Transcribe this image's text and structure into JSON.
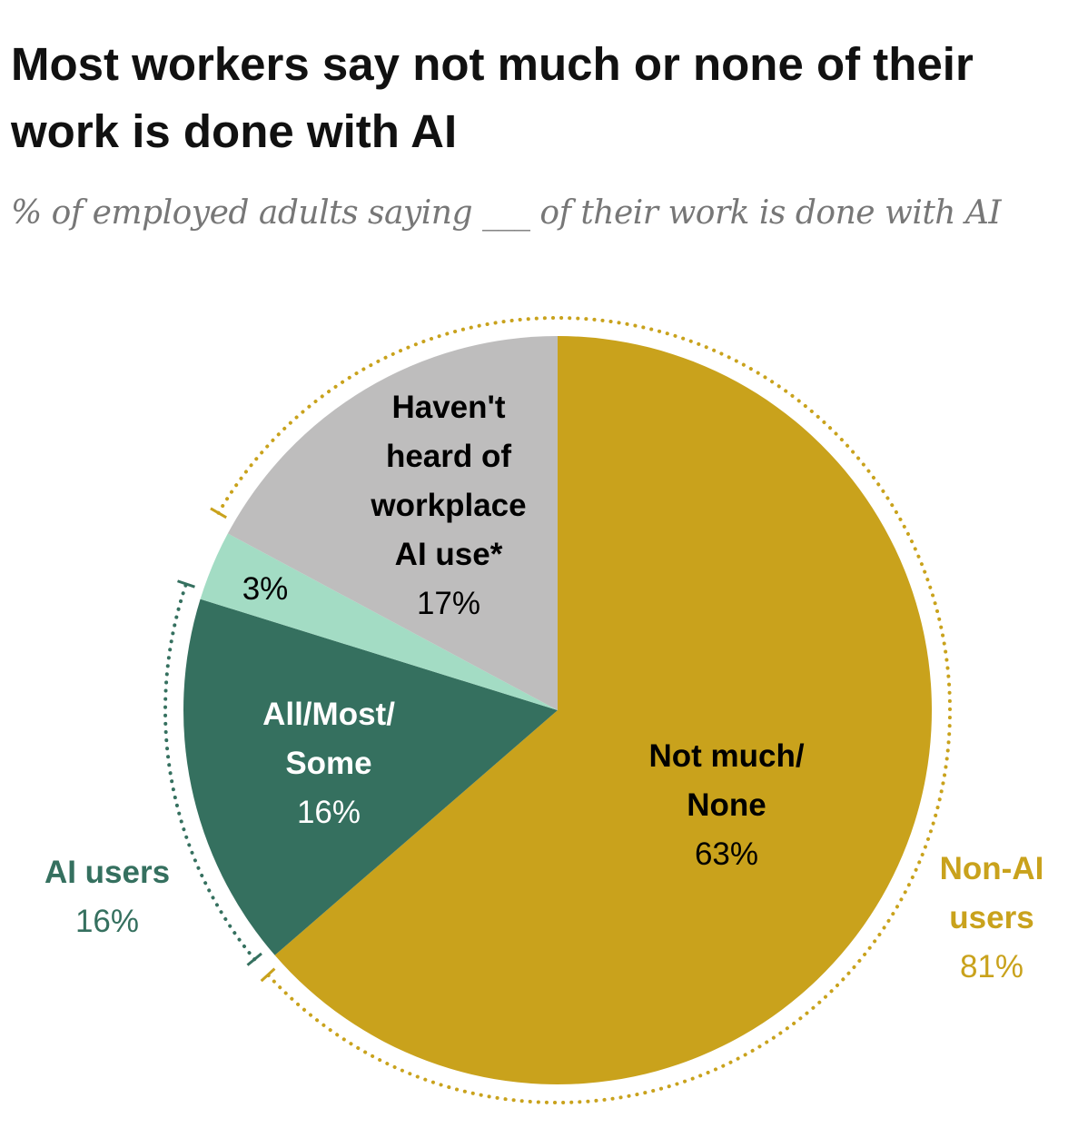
{
  "title": "Most workers say not much or none of their work is done with AI",
  "subtitle": "% of employed adults saying ___ of their work is done with AI",
  "chart_data": {
    "type": "pie",
    "start": "top, clockwise",
    "slices": [
      {
        "name_lines": [
          "Not much/",
          "None"
        ],
        "value": 63,
        "label": "63%",
        "color": "#C9A21C",
        "text_color": "#111111"
      },
      {
        "name_lines": [
          "All/Most/",
          "Some"
        ],
        "value": 16,
        "label": "16%",
        "color": "#35705F",
        "text_color": "#ffffff"
      },
      {
        "name_lines": [],
        "value": 3,
        "label": "3%",
        "color": "#A3DCC4",
        "text_color": "#111111"
      },
      {
        "name_lines": [
          "Haven't",
          "heard of",
          "workplace",
          "AI use*"
        ],
        "value": 17,
        "label": "17%",
        "color": "#BEBDBD",
        "text_color": "#111111"
      }
    ],
    "groups": [
      {
        "name_lines": [
          "Non-AI",
          "users"
        ],
        "value": 81,
        "label": "81%",
        "color": "#C9A21C"
      },
      {
        "name_lines": [
          "AI users"
        ],
        "value": 16,
        "label": "16%",
        "color": "#35705F"
      }
    ]
  }
}
